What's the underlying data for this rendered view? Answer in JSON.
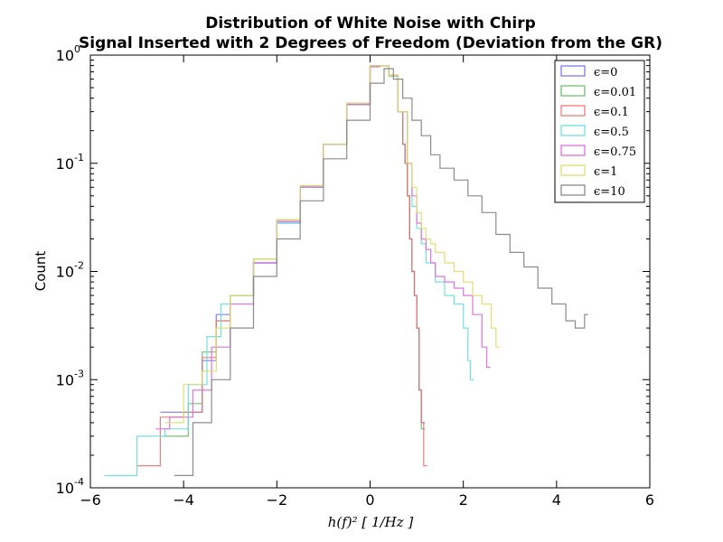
{
  "chart_data": {
    "type": "step-histogram",
    "title_lines": [
      "Distribution of White Noise with Chirp",
      "Signal Inserted with 2 Degrees of Freedom (Deviation from the GR)"
    ],
    "xlabel": "h(f)² [ 1/Hz ]",
    "ylabel": "Count",
    "xlim": [
      -6,
      6
    ],
    "ylim": [
      0.0001,
      1
    ],
    "yscale": "log",
    "x_ticks": [
      -6,
      -4,
      -2,
      0,
      2,
      4,
      6
    ],
    "x_tick_labels": [
      "−6",
      "−4",
      "−2",
      "0",
      "2",
      "4",
      "6"
    ],
    "y_ticks": [
      {
        "value": 1,
        "base": "10",
        "exp": "0"
      },
      {
        "value": 0.1,
        "base": "10",
        "exp": "-1"
      },
      {
        "value": 0.01,
        "base": "10",
        "exp": "-2"
      },
      {
        "value": 0.001,
        "base": "10",
        "exp": "-3"
      },
      {
        "value": 0.0001,
        "base": "10",
        "exp": "-4"
      }
    ],
    "legend_position": "top-right",
    "series": [
      {
        "name": "ϵ=0",
        "color": "#7070ee",
        "points": [
          [
            -4.5,
            0.0005
          ],
          [
            -4.0,
            0.0005
          ],
          [
            -3.6,
            0.0015
          ],
          [
            -3.3,
            0.004
          ],
          [
            -3.0,
            0.006
          ],
          [
            -2.5,
            0.012
          ],
          [
            -2.0,
            0.028
          ],
          [
            -1.5,
            0.06
          ],
          [
            -1.0,
            0.15
          ],
          [
            -0.5,
            0.35
          ],
          [
            0.0,
            0.78
          ],
          [
            0.2,
            0.8
          ],
          [
            0.4,
            0.65
          ],
          [
            0.6,
            0.3
          ],
          [
            0.7,
            0.15
          ],
          [
            0.75,
            0.1
          ],
          [
            0.8,
            0.05
          ],
          [
            0.85,
            0.02
          ],
          [
            0.9,
            0.01
          ],
          [
            0.95,
            0.006
          ],
          [
            1.0,
            0.003
          ],
          [
            1.05,
            0.0008
          ],
          [
            1.1,
            0.0004
          ]
        ]
      },
      {
        "name": "ϵ=0.01",
        "color": "#66bb66",
        "points": [
          [
            -4.4,
            0.0003
          ],
          [
            -3.9,
            0.0006
          ],
          [
            -3.6,
            0.0018
          ],
          [
            -3.3,
            0.0035
          ],
          [
            -3.0,
            0.006
          ],
          [
            -2.5,
            0.013
          ],
          [
            -2.0,
            0.03
          ],
          [
            -1.5,
            0.062
          ],
          [
            -1.0,
            0.15
          ],
          [
            -0.5,
            0.36
          ],
          [
            0.0,
            0.8
          ],
          [
            0.2,
            0.8
          ],
          [
            0.4,
            0.64
          ],
          [
            0.6,
            0.3
          ],
          [
            0.7,
            0.15
          ],
          [
            0.75,
            0.1
          ],
          [
            0.8,
            0.05
          ],
          [
            0.85,
            0.02
          ],
          [
            0.9,
            0.01
          ],
          [
            0.95,
            0.006
          ],
          [
            1.0,
            0.003
          ],
          [
            1.05,
            0.0008
          ],
          [
            1.1,
            0.00035
          ]
        ]
      },
      {
        "name": "ϵ=0.1",
        "color": "#ee7070",
        "points": [
          [
            -5.0,
            0.00016
          ],
          [
            -4.5,
            0.00045
          ],
          [
            -4.0,
            0.0005
          ],
          [
            -3.6,
            0.0016
          ],
          [
            -3.3,
            0.0035
          ],
          [
            -3.0,
            0.006
          ],
          [
            -2.5,
            0.012
          ],
          [
            -2.0,
            0.029
          ],
          [
            -1.5,
            0.06
          ],
          [
            -1.0,
            0.15
          ],
          [
            -0.5,
            0.35
          ],
          [
            0.0,
            0.79
          ],
          [
            0.2,
            0.8
          ],
          [
            0.4,
            0.65
          ],
          [
            0.6,
            0.3
          ],
          [
            0.7,
            0.15
          ],
          [
            0.75,
            0.1
          ],
          [
            0.8,
            0.05
          ],
          [
            0.85,
            0.02
          ],
          [
            0.9,
            0.01
          ],
          [
            0.95,
            0.006
          ],
          [
            1.0,
            0.003
          ],
          [
            1.05,
            0.0008
          ],
          [
            1.1,
            0.0004
          ],
          [
            1.15,
            0.00016
          ]
        ]
      },
      {
        "name": "ϵ=0.5",
        "color": "#66dddd",
        "points": [
          [
            -5.7,
            0.00013
          ],
          [
            -5.0,
            0.0003
          ],
          [
            -4.4,
            0.00035
          ],
          [
            -3.9,
            0.0009
          ],
          [
            -3.5,
            0.0025
          ],
          [
            -3.2,
            0.005
          ],
          [
            -3.0,
            0.006
          ],
          [
            -2.5,
            0.012
          ],
          [
            -2.0,
            0.028
          ],
          [
            -1.5,
            0.06
          ],
          [
            -1.0,
            0.15
          ],
          [
            -0.5,
            0.35
          ],
          [
            0.0,
            0.78
          ],
          [
            0.2,
            0.8
          ],
          [
            0.4,
            0.65
          ],
          [
            0.6,
            0.3
          ],
          [
            0.8,
            0.1
          ],
          [
            0.9,
            0.04
          ],
          [
            1.0,
            0.025
          ],
          [
            1.1,
            0.018
          ],
          [
            1.2,
            0.012
          ],
          [
            1.4,
            0.008
          ],
          [
            1.6,
            0.006
          ],
          [
            1.8,
            0.005
          ],
          [
            2.0,
            0.003
          ],
          [
            2.1,
            0.0015
          ],
          [
            2.15,
            0.001
          ]
        ]
      },
      {
        "name": "ϵ=0.75",
        "color": "#dd66dd",
        "points": [
          [
            -4.6,
            0.00035
          ],
          [
            -4.3,
            0.00045
          ],
          [
            -3.8,
            0.0008
          ],
          [
            -3.4,
            0.002
          ],
          [
            -3.0,
            0.005
          ],
          [
            -2.5,
            0.012
          ],
          [
            -2.0,
            0.029
          ],
          [
            -1.5,
            0.06
          ],
          [
            -1.0,
            0.15
          ],
          [
            -0.5,
            0.35
          ],
          [
            0.0,
            0.78
          ],
          [
            0.2,
            0.8
          ],
          [
            0.4,
            0.65
          ],
          [
            0.6,
            0.3
          ],
          [
            0.8,
            0.1
          ],
          [
            0.9,
            0.05
          ],
          [
            1.0,
            0.028
          ],
          [
            1.1,
            0.02
          ],
          [
            1.2,
            0.016
          ],
          [
            1.3,
            0.012
          ],
          [
            1.4,
            0.009
          ],
          [
            1.6,
            0.008
          ],
          [
            1.8,
            0.007
          ],
          [
            2.0,
            0.006
          ],
          [
            2.2,
            0.004
          ],
          [
            2.4,
            0.002
          ],
          [
            2.5,
            0.0013
          ]
        ]
      },
      {
        "name": "ϵ=1",
        "color": "#dddd66",
        "points": [
          [
            -4.4,
            0.0004
          ],
          [
            -4.0,
            0.0009
          ],
          [
            -3.6,
            0.0012
          ],
          [
            -3.3,
            0.003
          ],
          [
            -3.0,
            0.006
          ],
          [
            -2.5,
            0.013
          ],
          [
            -2.0,
            0.03
          ],
          [
            -1.5,
            0.062
          ],
          [
            -1.0,
            0.15
          ],
          [
            -0.5,
            0.36
          ],
          [
            0.0,
            0.8
          ],
          [
            0.2,
            0.8
          ],
          [
            0.4,
            0.65
          ],
          [
            0.6,
            0.3
          ],
          [
            0.8,
            0.1
          ],
          [
            0.9,
            0.06
          ],
          [
            1.0,
            0.035
          ],
          [
            1.1,
            0.025
          ],
          [
            1.2,
            0.02
          ],
          [
            1.3,
            0.018
          ],
          [
            1.4,
            0.015
          ],
          [
            1.6,
            0.012
          ],
          [
            1.8,
            0.01
          ],
          [
            2.0,
            0.008
          ],
          [
            2.2,
            0.006
          ],
          [
            2.4,
            0.005
          ],
          [
            2.6,
            0.003
          ],
          [
            2.7,
            0.002
          ]
        ]
      },
      {
        "name": "ϵ=10",
        "color": "#808080",
        "points": [
          [
            -4.2,
            0.00013
          ],
          [
            -3.8,
            0.0004
          ],
          [
            -3.4,
            0.001
          ],
          [
            -3.0,
            0.003
          ],
          [
            -2.5,
            0.009
          ],
          [
            -2.0,
            0.02
          ],
          [
            -1.5,
            0.045
          ],
          [
            -1.0,
            0.11
          ],
          [
            -0.5,
            0.25
          ],
          [
            0.0,
            0.55
          ],
          [
            0.3,
            0.75
          ],
          [
            0.5,
            0.6
          ],
          [
            0.7,
            0.4
          ],
          [
            0.9,
            0.25
          ],
          [
            1.1,
            0.18
          ],
          [
            1.3,
            0.12
          ],
          [
            1.5,
            0.09
          ],
          [
            1.8,
            0.07
          ],
          [
            2.1,
            0.05
          ],
          [
            2.4,
            0.035
          ],
          [
            2.7,
            0.022
          ],
          [
            3.0,
            0.015
          ],
          [
            3.3,
            0.011
          ],
          [
            3.6,
            0.007
          ],
          [
            3.9,
            0.005
          ],
          [
            4.2,
            0.0035
          ],
          [
            4.4,
            0.003
          ],
          [
            4.6,
            0.004
          ]
        ]
      }
    ]
  }
}
